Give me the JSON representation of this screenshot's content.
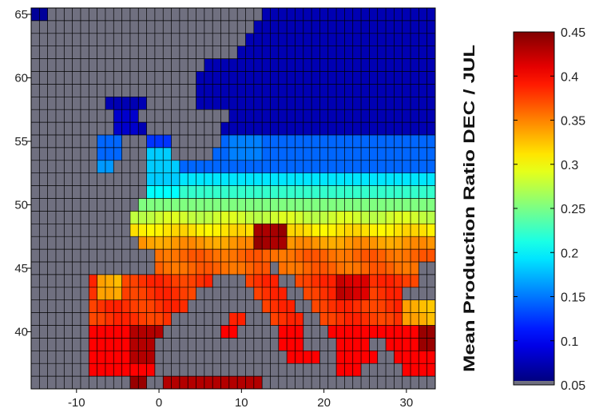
{
  "chart_data": {
    "type": "heatmap",
    "title": "",
    "xlabel": "",
    "ylabel": "",
    "x_ticks": [
      -10,
      0,
      10,
      20,
      30
    ],
    "y_ticks": [
      40,
      45,
      50,
      55,
      60,
      65
    ],
    "xlim": [
      -15.5,
      33.5
    ],
    "ylim": [
      35.5,
      65.5
    ],
    "cell_size_deg": 1,
    "no_data_color": "#707080",
    "grid_line_color": "#000000",
    "colorbar": {
      "label": "Mean Production Ratio DEC / JUL",
      "colormap": "jet",
      "range": [
        0.05,
        0.45
      ],
      "ticks": [
        "0.05",
        "0.1",
        "0.15",
        "0.2",
        "0.25",
        "0.3",
        "0.35",
        "0.4",
        "0.45"
      ]
    },
    "value_bands": [
      {
        "lat_min": 55.5,
        "lat_max": 65.5,
        "value": 0.07
      },
      {
        "lat_min": 52.5,
        "lat_max": 55.5,
        "value": 0.14
      },
      {
        "lat_min": 51.5,
        "lat_max": 52.5,
        "value": 0.19
      },
      {
        "lat_min": 50.5,
        "lat_max": 51.5,
        "value": 0.22
      },
      {
        "lat_min": 49.5,
        "lat_max": 50.5,
        "value": 0.25
      },
      {
        "lat_min": 48.5,
        "lat_max": 49.5,
        "value": 0.28
      },
      {
        "lat_min": 47.5,
        "lat_max": 48.5,
        "value": 0.31
      },
      {
        "lat_min": 46.5,
        "lat_max": 47.5,
        "value": 0.34
      },
      {
        "lat_min": 44.5,
        "lat_max": 46.5,
        "value": 0.36
      },
      {
        "lat_min": 40.5,
        "lat_max": 44.5,
        "value": 0.38
      },
      {
        "lat_min": 35.5,
        "lat_max": 40.5,
        "value": 0.4
      }
    ],
    "hotspots": [
      {
        "lon_min": 11.5,
        "lon_max": 15.5,
        "lat_min": 46.5,
        "lat_max": 48.5,
        "value": 0.44
      },
      {
        "lon_min": 21.5,
        "lon_max": 25.5,
        "lat_min": 42.5,
        "lat_max": 44.5,
        "value": 0.42
      },
      {
        "lon_min": -3.5,
        "lon_max": 0.5,
        "lat_min": 37.5,
        "lat_max": 40.5,
        "value": 0.43
      },
      {
        "lon_min": 31.5,
        "lon_max": 33.5,
        "lat_min": 38.5,
        "lat_max": 40.5,
        "value": 0.44
      },
      {
        "lon_min": -3.5,
        "lon_max": -1.5,
        "lat_min": 35.5,
        "lat_max": 36.5,
        "value": 0.44
      },
      {
        "lon_min": 0.5,
        "lon_max": 12.5,
        "lat_min": 35.5,
        "lat_max": 36.5,
        "value": 0.43
      },
      {
        "lon_min": -7.5,
        "lon_max": -4.5,
        "lat_min": 42.5,
        "lat_max": 44.5,
        "value": 0.33
      },
      {
        "lon_min": 29.5,
        "lon_max": 33.5,
        "lat_min": 40.5,
        "lat_max": 42.5,
        "value": 0.33
      },
      {
        "lon_min": -7.5,
        "lon_max": -4.5,
        "lat_min": 53.5,
        "lat_max": 55.5,
        "value": 0.14
      },
      {
        "lon_min": -7.5,
        "lon_max": -5.5,
        "lat_min": 52.5,
        "lat_max": 53.5,
        "value": 0.16
      },
      {
        "lon_min": -6.5,
        "lon_max": -1.5,
        "lat_min": 57.5,
        "lat_max": 58.5,
        "value": 0.07
      },
      {
        "lon_min": -5.5,
        "lon_max": -2.5,
        "lat_min": 55.5,
        "lat_max": 57.5,
        "value": 0.08
      },
      {
        "lon_min": -1.5,
        "lon_max": 1.5,
        "lat_min": 54.5,
        "lat_max": 55.5,
        "value": 0.12
      },
      {
        "lon_min": -1.5,
        "lon_max": 2.5,
        "lat_min": 51.5,
        "lat_max": 54.5,
        "value": 0.18
      },
      {
        "lon_min": -1.5,
        "lon_max": 2.5,
        "lat_min": 50.5,
        "lat_max": 51.5,
        "value": 0.2
      },
      {
        "lon_min": 8.5,
        "lon_max": 12.5,
        "lat_min": 53.5,
        "lat_max": 55.5,
        "value": 0.15
      },
      {
        "lon_min": -15.5,
        "lon_max": -13.5,
        "lat_min": 64.5,
        "lat_max": 65.5,
        "value": 0.06
      }
    ],
    "land_mask_rows": [
      {
        "lat": 65,
        "spans": [
          [
            -15,
            -14
          ],
          [
            13,
            33
          ]
        ]
      },
      {
        "lat": 64,
        "spans": [
          [
            12,
            33
          ]
        ]
      },
      {
        "lat": 63,
        "spans": [
          [
            11,
            33
          ]
        ]
      },
      {
        "lat": 62,
        "spans": [
          [
            10,
            33
          ]
        ]
      },
      {
        "lat": 61,
        "spans": [
          [
            6,
            33
          ]
        ]
      },
      {
        "lat": 60,
        "spans": [
          [
            5,
            33
          ]
        ]
      },
      {
        "lat": 59,
        "spans": [
          [
            5,
            33
          ]
        ]
      },
      {
        "lat": 58,
        "spans": [
          [
            -6,
            -2
          ],
          [
            5,
            33
          ]
        ]
      },
      {
        "lat": 57,
        "spans": [
          [
            -5,
            -3
          ],
          [
            9,
            33
          ]
        ]
      },
      {
        "lat": 56,
        "spans": [
          [
            -5,
            -2
          ],
          [
            8,
            33
          ]
        ]
      },
      {
        "lat": 55,
        "spans": [
          [
            -7,
            -5
          ],
          [
            -1,
            1
          ],
          [
            8,
            33
          ]
        ]
      },
      {
        "lat": 54,
        "spans": [
          [
            -7,
            -5
          ],
          [
            -1,
            1
          ],
          [
            7,
            33
          ]
        ]
      },
      {
        "lat": 53,
        "spans": [
          [
            -7,
            -6
          ],
          [
            -1,
            33
          ]
        ]
      },
      {
        "lat": 52,
        "spans": [
          [
            -1,
            33
          ]
        ]
      },
      {
        "lat": 51,
        "spans": [
          [
            -1,
            33
          ]
        ]
      },
      {
        "lat": 50,
        "spans": [
          [
            -2,
            33
          ]
        ]
      },
      {
        "lat": 49,
        "spans": [
          [
            -3,
            33
          ]
        ]
      },
      {
        "lat": 48,
        "spans": [
          [
            -3,
            33
          ]
        ]
      },
      {
        "lat": 47,
        "spans": [
          [
            -2,
            33
          ]
        ]
      },
      {
        "lat": 46,
        "spans": [
          [
            0,
            33
          ]
        ]
      },
      {
        "lat": 45,
        "spans": [
          [
            0,
            13
          ],
          [
            15,
            31
          ]
        ]
      },
      {
        "lat": 44,
        "spans": [
          [
            -8,
            6
          ],
          [
            11,
            14
          ],
          [
            17,
            31
          ]
        ]
      },
      {
        "lat": 43,
        "spans": [
          [
            -8,
            4
          ],
          [
            12,
            15
          ],
          [
            18,
            29
          ]
        ]
      },
      {
        "lat": 42,
        "spans": [
          [
            -8,
            3
          ],
          [
            13,
            16
          ],
          [
            19,
            33
          ]
        ]
      },
      {
        "lat": 41,
        "spans": [
          [
            -8,
            1
          ],
          [
            9,
            10
          ],
          [
            14,
            17
          ],
          [
            20,
            33
          ]
        ]
      },
      {
        "lat": 40,
        "spans": [
          [
            -8,
            0
          ],
          [
            8,
            9
          ],
          [
            15,
            17
          ],
          [
            21,
            33
          ]
        ]
      },
      {
        "lat": 39,
        "spans": [
          [
            -8,
            -1
          ],
          [
            15,
            17
          ],
          [
            22,
            25
          ],
          [
            28,
            33
          ]
        ]
      },
      {
        "lat": 38,
        "spans": [
          [
            -8,
            -1
          ],
          [
            16,
            19
          ],
          [
            22,
            26
          ],
          [
            29,
            33
          ]
        ]
      },
      {
        "lat": 37,
        "spans": [
          [
            -8,
            -1
          ],
          [
            22,
            24
          ],
          [
            30,
            33
          ]
        ]
      },
      {
        "lat": 36,
        "spans": [
          [
            -3,
            -2
          ],
          [
            1,
            12
          ]
        ]
      }
    ]
  }
}
